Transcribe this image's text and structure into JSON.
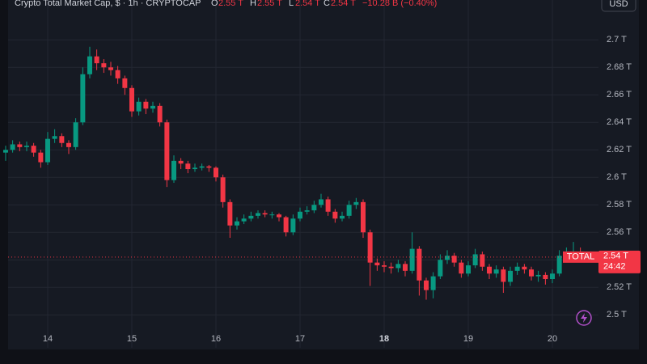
{
  "chart_data": {
    "type": "candlestick",
    "header": {
      "title": "Crypto Total Market Cap, $ · 1h · CRYPTOCAP",
      "o_label": "O",
      "o_value": "2.55 T",
      "h_label": "H",
      "h_value": "2.55 T",
      "l_label": "L",
      "l_value": "2.54 T",
      "c_label": "C",
      "c_value": "2.54 T",
      "change": "−10.28 B (−0.40%)"
    },
    "currency": "USD",
    "price_tag": {
      "name": "TOTAL",
      "label": "2.54 T",
      "countdown": "24:42"
    },
    "up_color": "#089981",
    "down_color": "#f23645",
    "grid": true,
    "xlim": [
      13.529,
      20.548
    ],
    "xticks": [
      14,
      15,
      16,
      17,
      18,
      19,
      20
    ],
    "bold_xticks": [
      18
    ],
    "ylim": [
      2.476,
      2.729
    ],
    "yticks": [
      {
        "value": 2.5,
        "label": "2.5 T"
      },
      {
        "value": 2.52,
        "label": "2.52 T"
      },
      {
        "value": 2.54,
        "label": "2.54 T"
      },
      {
        "value": 2.56,
        "label": "2.56 T"
      },
      {
        "value": 2.58,
        "label": "2.58 T"
      },
      {
        "value": 2.6,
        "label": "2.6 T"
      },
      {
        "value": 2.62,
        "label": "2.62 T"
      },
      {
        "value": 2.64,
        "label": "2.64 T"
      },
      {
        "value": 2.66,
        "label": "2.66 T"
      },
      {
        "value": 2.68,
        "label": "2.68 T"
      },
      {
        "value": 2.7,
        "label": "2.7 T"
      }
    ],
    "x": [
      13.5,
      13.583,
      13.667,
      13.75,
      13.833,
      13.917,
      14,
      14.083,
      14.167,
      14.25,
      14.333,
      14.417,
      14.5,
      14.583,
      14.667,
      14.75,
      14.833,
      14.917,
      15,
      15.083,
      15.167,
      15.25,
      15.333,
      15.417,
      15.5,
      15.583,
      15.667,
      15.75,
      15.833,
      15.917,
      16,
      16.083,
      16.167,
      16.25,
      16.333,
      16.417,
      16.5,
      16.583,
      16.667,
      16.75,
      16.833,
      16.917,
      17,
      17.083,
      17.167,
      17.25,
      17.333,
      17.417,
      17.5,
      17.583,
      17.667,
      17.75,
      17.833,
      17.917,
      18,
      18.083,
      18.167,
      18.25,
      18.333,
      18.417,
      18.5,
      18.583,
      18.667,
      18.75,
      18.833,
      18.917,
      19,
      19.083,
      19.167,
      19.25,
      19.333,
      19.417,
      19.5,
      19.583,
      19.667,
      19.75,
      19.833,
      19.917,
      20,
      20.083,
      20.167,
      20.25,
      20.333
    ],
    "series": [
      {
        "open": [
          2.618,
          2.62,
          2.624,
          2.622,
          2.623,
          2.618,
          2.611,
          2.628,
          2.63,
          2.625,
          2.622,
          2.64,
          2.675,
          2.688,
          2.683,
          2.68,
          2.678,
          2.672,
          2.665,
          2.648,
          2.655,
          2.65,
          2.652,
          2.64,
          2.598,
          2.612,
          2.61,
          2.606,
          2.607,
          2.608,
          2.607,
          2.6,
          2.582,
          2.565,
          2.568,
          2.57,
          2.572,
          2.574,
          2.573,
          2.573,
          2.571,
          2.56,
          2.57,
          2.575,
          2.576,
          2.58,
          2.584,
          2.575,
          2.57,
          2.572,
          2.58,
          2.582,
          2.56,
          2.538,
          2.536,
          2.535,
          2.534,
          2.537,
          2.532,
          2.548,
          2.525,
          2.518,
          2.528,
          2.54,
          2.543,
          2.538,
          2.53,
          2.536,
          2.544,
          2.535,
          2.53,
          2.533,
          2.524,
          2.532,
          2.535,
          2.533,
          2.528,
          2.529,
          2.526,
          2.53,
          2.543,
          2.545,
          2.546
        ],
        "high": [
          2.623,
          2.627,
          2.626,
          2.626,
          2.625,
          2.62,
          2.633,
          2.635,
          2.632,
          2.627,
          2.643,
          2.68,
          2.695,
          2.693,
          2.686,
          2.684,
          2.681,
          2.674,
          2.667,
          2.658,
          2.657,
          2.655,
          2.654,
          2.642,
          2.616,
          2.614,
          2.612,
          2.61,
          2.61,
          2.609,
          2.608,
          2.602,
          2.584,
          2.571,
          2.573,
          2.575,
          2.576,
          2.576,
          2.575,
          2.574,
          2.572,
          2.573,
          2.578,
          2.579,
          2.583,
          2.588,
          2.586,
          2.577,
          2.575,
          2.583,
          2.585,
          2.584,
          2.562,
          2.541,
          2.539,
          2.538,
          2.54,
          2.539,
          2.56,
          2.55,
          2.527,
          2.531,
          2.544,
          2.547,
          2.545,
          2.54,
          2.539,
          2.548,
          2.546,
          2.537,
          2.536,
          2.535,
          2.535,
          2.538,
          2.537,
          2.535,
          2.532,
          2.531,
          2.533,
          2.547,
          2.549,
          2.553,
          2.549
        ],
        "low": [
          2.612,
          2.618,
          2.619,
          2.619,
          2.615,
          2.607,
          2.609,
          2.625,
          2.622,
          2.617,
          2.62,
          2.638,
          2.672,
          2.678,
          2.676,
          2.674,
          2.668,
          2.66,
          2.644,
          2.645,
          2.646,
          2.647,
          2.637,
          2.593,
          2.596,
          2.606,
          2.603,
          2.604,
          2.605,
          2.604,
          2.597,
          2.578,
          2.556,
          2.562,
          2.566,
          2.568,
          2.57,
          2.571,
          2.57,
          2.568,
          2.557,
          2.558,
          2.568,
          2.573,
          2.574,
          2.578,
          2.572,
          2.567,
          2.568,
          2.57,
          2.577,
          2.556,
          2.521,
          2.532,
          2.531,
          2.53,
          2.531,
          2.528,
          2.53,
          2.514,
          2.511,
          2.512,
          2.526,
          2.537,
          2.535,
          2.527,
          2.528,
          2.534,
          2.532,
          2.526,
          2.527,
          2.516,
          2.521,
          2.529,
          2.53,
          2.525,
          2.524,
          2.522,
          2.523,
          2.528,
          2.54,
          2.542,
          2.539
        ],
        "close": [
          2.62,
          2.624,
          2.622,
          2.623,
          2.618,
          2.611,
          2.628,
          2.63,
          2.625,
          2.622,
          2.64,
          2.675,
          2.688,
          2.683,
          2.68,
          2.678,
          2.672,
          2.665,
          2.648,
          2.655,
          2.65,
          2.652,
          2.64,
          2.598,
          2.612,
          2.61,
          2.606,
          2.607,
          2.608,
          2.607,
          2.6,
          2.582,
          2.565,
          2.568,
          2.57,
          2.572,
          2.574,
          2.573,
          2.573,
          2.571,
          2.56,
          2.57,
          2.575,
          2.576,
          2.58,
          2.584,
          2.575,
          2.57,
          2.572,
          2.58,
          2.582,
          2.56,
          2.538,
          2.536,
          2.535,
          2.534,
          2.537,
          2.532,
          2.548,
          2.525,
          2.518,
          2.528,
          2.54,
          2.543,
          2.538,
          2.53,
          2.536,
          2.544,
          2.535,
          2.53,
          2.533,
          2.524,
          2.532,
          2.535,
          2.533,
          2.528,
          2.529,
          2.526,
          2.53,
          2.543,
          2.545,
          2.546,
          2.542
        ]
      }
    ]
  }
}
